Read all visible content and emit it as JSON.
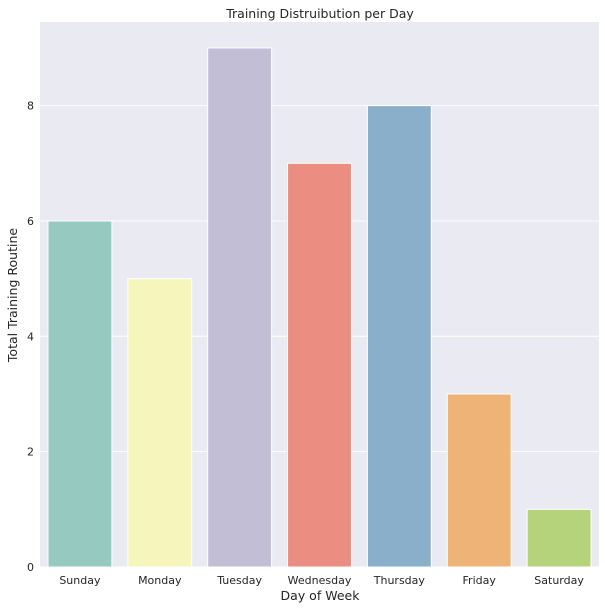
{
  "chart_data": {
    "type": "bar",
    "title": "Training Distruibution per Day",
    "xlabel": "Day of Week",
    "ylabel": "Total Training Routine",
    "categories": [
      "Sunday",
      "Monday",
      "Tuesday",
      "Wednesday",
      "Thursday",
      "Friday",
      "Saturday"
    ],
    "values": [
      6,
      5,
      9,
      7,
      8,
      3,
      1
    ],
    "colors": [
      "#96cac1",
      "#f6f6bc",
      "#c1bed6",
      "#eb8d80",
      "#8aafca",
      "#eeb477",
      "#b4d37b"
    ],
    "yticks": [
      0,
      2,
      4,
      6,
      8
    ],
    "ylim": [
      0,
      9.45
    ],
    "grid": true,
    "background": "#eaeaf2"
  }
}
